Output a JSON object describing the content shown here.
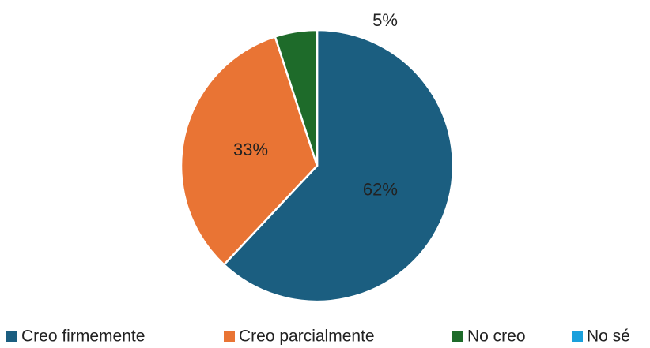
{
  "chart_data": {
    "type": "pie",
    "categories": [
      "Creo firmemente",
      "Creo parcialmente",
      "No creo",
      "No sé"
    ],
    "values": [
      62,
      33,
      5,
      0
    ],
    "value_labels": [
      "62%",
      "33%",
      "5%",
      null
    ],
    "colors": [
      "#1b5e80",
      "#e97434",
      "#1e6b2a",
      "#1aa0dc"
    ],
    "legend": "bottom"
  }
}
